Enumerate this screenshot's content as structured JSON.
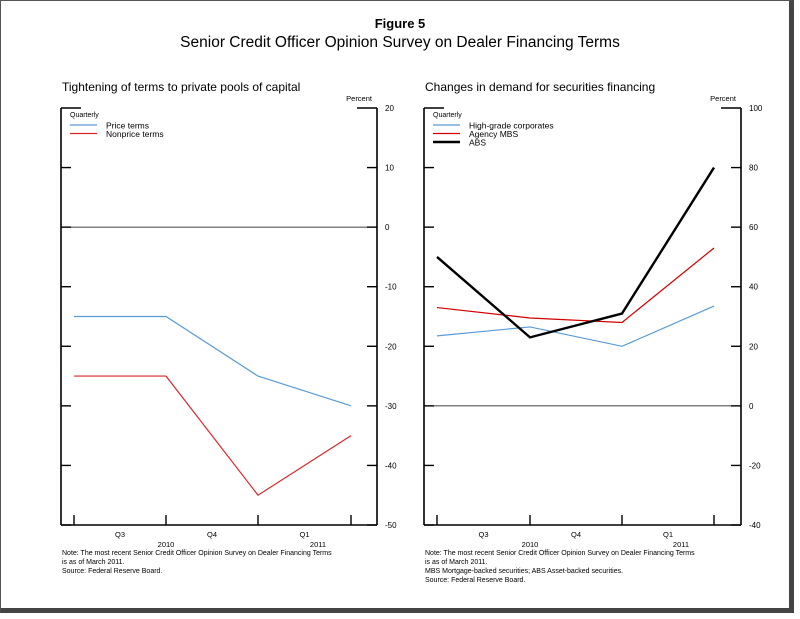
{
  "figure": {
    "number": "Figure 5",
    "title": "Senior Credit Officer Opinion Survey on Dealer Financing Terms"
  },
  "chart_data": [
    {
      "type": "line",
      "title": "Tightening of terms to private pools of capital",
      "ylabel": "Percent",
      "frequency_label": "Quarterly",
      "ylim": [
        -50,
        20
      ],
      "yticks": [
        20,
        10,
        0,
        -10,
        -20,
        -30,
        -40,
        -50
      ],
      "x": [
        "2010 Q2/Q3",
        "2010 Q3/Q4",
        "2010 Q4/2011 Q1",
        "2011 Q1"
      ],
      "quarter_labels": [
        "Q3",
        "Q4",
        "Q1"
      ],
      "year_labels": [
        "2010",
        "2011"
      ],
      "series": [
        {
          "name": "Price terms",
          "color": "#5b9bd5",
          "values": [
            -15,
            -15,
            -25,
            -30
          ]
        },
        {
          "name": "Nonprice terms",
          "color": "#d62728",
          "values": [
            -25,
            -25,
            -45,
            -35
          ]
        }
      ],
      "zero_line": true,
      "legend": "top-left",
      "notes": [
        "Note: The most recent Senior Credit Officer Opinion Survey on Dealer Financing Terms",
        "is as of March 2011.",
        "Source: Federal Reserve Board."
      ]
    },
    {
      "type": "line",
      "title": "Changes in demand for securities financing",
      "ylabel": "Percent",
      "frequency_label": "Quarterly",
      "ylim": [
        -40,
        100
      ],
      "yticks": [
        100,
        80,
        60,
        40,
        20,
        0,
        -20,
        -40
      ],
      "x": [
        "2010 Q2/Q3",
        "2010 Q3/Q4",
        "2010 Q4/2011 Q1",
        "2011 Q1"
      ],
      "quarter_labels": [
        "Q3",
        "Q4",
        "Q1"
      ],
      "year_labels": [
        "2010",
        "2011"
      ],
      "series": [
        {
          "name": "High-grade corporates",
          "color": "#5b9bd5",
          "values": [
            23.5,
            26.5,
            20,
            33.5
          ]
        },
        {
          "name": "Agency MBS",
          "color": "#d00000",
          "values": [
            33,
            29.5,
            28,
            53
          ]
        },
        {
          "name": "ABS",
          "color": "#000000",
          "values": [
            50,
            23,
            31,
            80
          ]
        }
      ],
      "zero_line": true,
      "legend": "top-left",
      "notes": [
        "Note: The most recent Senior Credit Officer Opinion Survey on Dealer Financing Terms",
        "is as of March 2011.",
        "MBS  Mortgage-backed securities; ABS  Asset-backed securities.",
        "Source: Federal Reserve Board."
      ]
    }
  ]
}
